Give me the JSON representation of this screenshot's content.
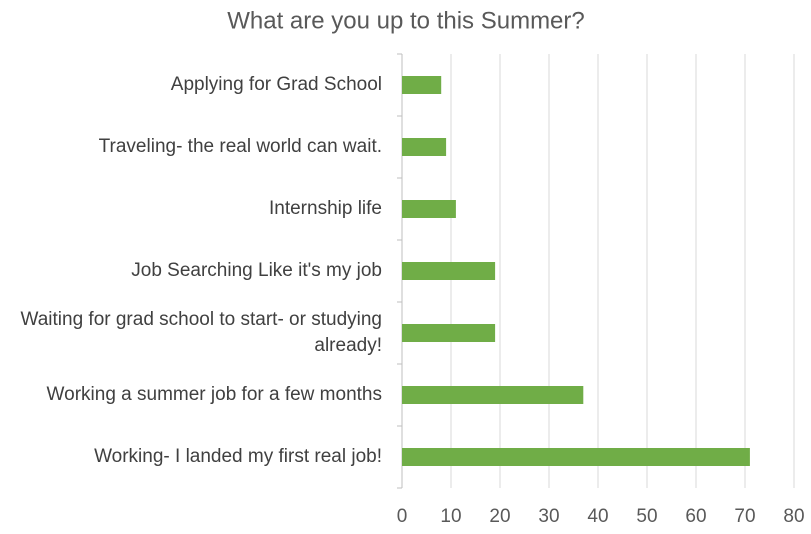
{
  "chart_data": {
    "type": "hbar",
    "title": "What are you up to this Summer?",
    "categories": [
      "Applying for Grad School",
      "Traveling- the real world can wait.",
      "Internship life",
      "Job Searching Like it's my job",
      "Waiting for grad school to start- or studying already!",
      "Working a summer job for a few months",
      "Working- I landed my first real job!"
    ],
    "values": [
      8,
      9,
      11,
      19,
      19,
      37,
      71
    ],
    "color": "#70ad47",
    "xlim": [
      0,
      80
    ],
    "xticks": [
      0,
      10,
      20,
      30,
      40,
      50,
      60,
      70,
      80
    ],
    "grid": true
  }
}
